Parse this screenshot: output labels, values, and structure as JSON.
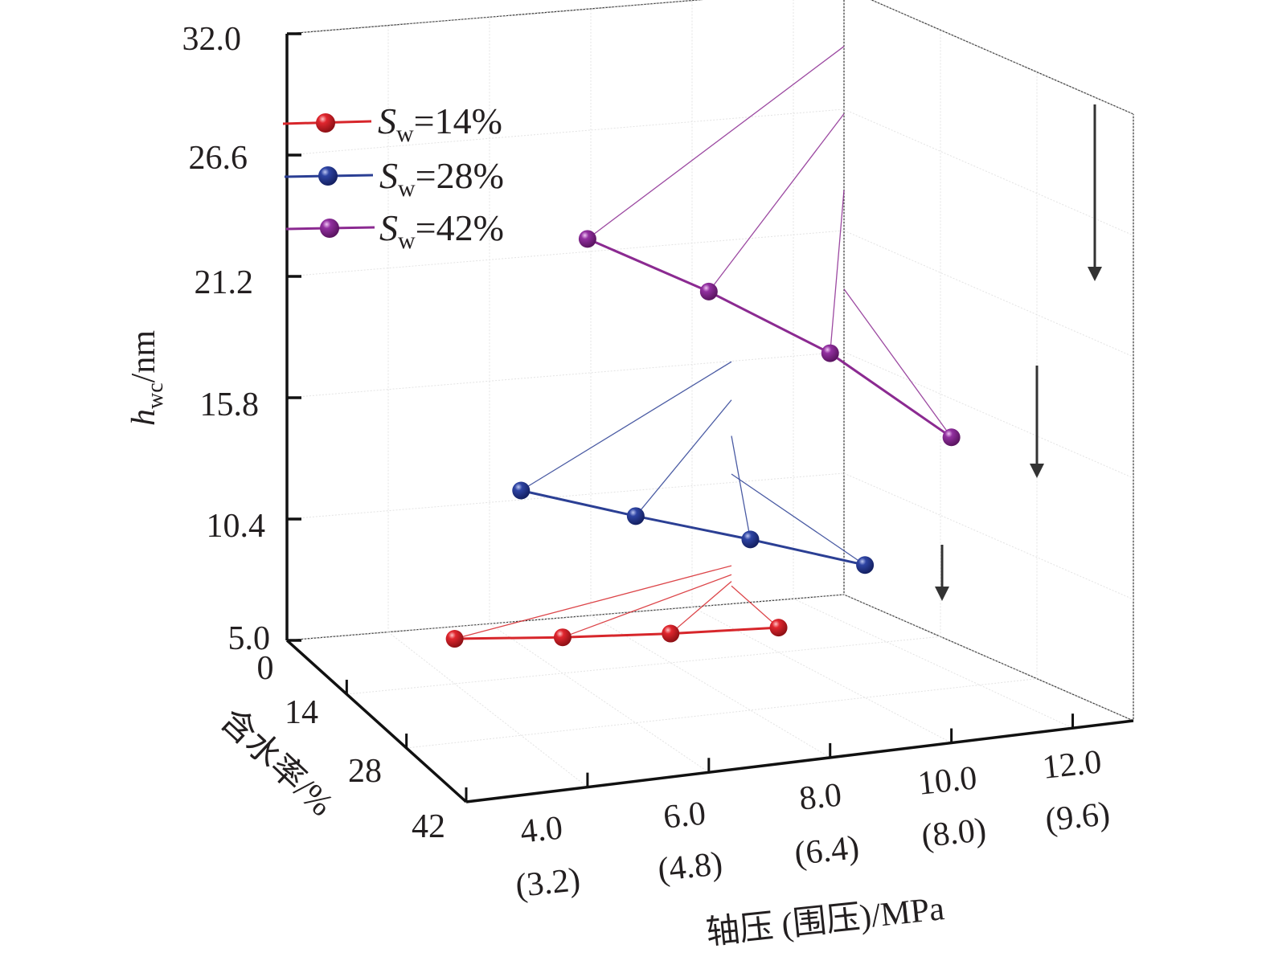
{
  "chart_data": {
    "type": "line3d",
    "title": "",
    "zlabel": {
      "main": "h",
      "sub": "wc",
      "unit": "/nm"
    },
    "xlabel": "轴压 (围压)/MPa",
    "ylabel": "含水率/%",
    "z_ticks": [
      "32.0",
      "26.6",
      "21.2",
      "15.8",
      "10.4",
      "5.0"
    ],
    "z_tick_values": [
      32.0,
      26.6,
      21.2,
      15.8,
      10.4,
      5.0
    ],
    "zlim": [
      5.0,
      32.0
    ],
    "x_ticks": [
      {
        "value": 4.0,
        "label": "4.0",
        "sub": "(3.2)"
      },
      {
        "value": 6.0,
        "label": "6.0",
        "sub": "(4.8)"
      },
      {
        "value": 8.0,
        "label": "8.0",
        "sub": "(6.4)"
      },
      {
        "value": 10.0,
        "label": "10.0",
        "sub": "(8.0)"
      },
      {
        "value": 12.0,
        "label": "12.0",
        "sub": "(9.6)"
      }
    ],
    "xlim": [
      2.0,
      13.0
    ],
    "y_ticks": [
      "0",
      "14",
      "28",
      "42"
    ],
    "y_tick_values": [
      0,
      14,
      28,
      42
    ],
    "ylim": [
      0,
      42
    ],
    "x": [
      4.0,
      6.0,
      8.0,
      10.0
    ],
    "series": [
      {
        "name": "Sw=14%",
        "label_main": "S",
        "label_sub": "w",
        "label_rest": "=14%",
        "moisture": 14,
        "color": "#d7262b",
        "values": [
          7.0,
          6.6,
          6.3,
          6.1
        ]
      },
      {
        "name": "Sw=28%",
        "label_main": "S",
        "label_sub": "w",
        "label_rest": "=28%",
        "moisture": 28,
        "color": "#2b3f94",
        "values": [
          15.9,
          14.2,
          12.6,
          10.9
        ]
      },
      {
        "name": "Sw=42%",
        "label_main": "S",
        "label_sub": "w",
        "label_rest": "=42%",
        "moisture": 42,
        "color": "#8b2a91",
        "values": [
          29.4,
          26.4,
          23.0,
          18.6
        ]
      }
    ],
    "annotations": [
      "down-arrow",
      "down-arrow",
      "down-arrow"
    ],
    "legend_position": "top-left",
    "grid": true
  }
}
